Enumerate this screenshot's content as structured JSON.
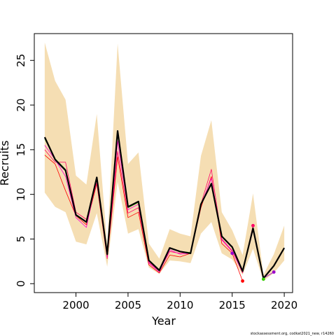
{
  "chart_data": {
    "type": "line",
    "title": "",
    "xlabel": "Year",
    "ylabel": "Recruits",
    "xlim": [
      1996.0,
      2020.8
    ],
    "ylim": [
      -1.0,
      28.0
    ],
    "xticks": [
      2000,
      2005,
      2010,
      2015,
      2020
    ],
    "yticks": [
      0,
      5,
      10,
      15,
      20,
      25
    ],
    "grid": false,
    "legend": "none",
    "footnote": "stockassessment.org, codkat2021_new, r14260",
    "colors": {
      "band": "#f5deb3",
      "main": "#000000",
      "retro_red": "#ff0000",
      "retro_magenta": "#ff00cc",
      "retro_green": "#33cc00",
      "retro_purple": "#9900cc"
    },
    "confidence_band": {
      "x": [
        1997,
        1998,
        1999,
        2000,
        2001,
        2002,
        2003,
        2004,
        2005,
        2006,
        2007,
        2008,
        2009,
        2010,
        2011,
        2012,
        2013,
        2014,
        2015,
        2016,
        2017,
        2018,
        2019,
        2020
      ],
      "upper": [
        27.0,
        22.7,
        20.6,
        12.1,
        11.1,
        19.0,
        4.3,
        26.9,
        13.4,
        14.7,
        4.5,
        2.8,
        6.1,
        5.6,
        5.3,
        14.3,
        18.3,
        8.0,
        6.0,
        3.2,
        10.1,
        1.0,
        3.3,
        6.5
      ],
      "lower": [
        10.2,
        8.6,
        8.0,
        4.7,
        4.4,
        7.9,
        1.9,
        11.4,
        5.6,
        6.1,
        1.8,
        1.1,
        2.6,
        2.5,
        2.3,
        5.6,
        6.9,
        3.4,
        2.7,
        1.0,
        3.9,
        0.3,
        1.2,
        2.6
      ]
    },
    "series": [
      {
        "color": "#ff0000",
        "x": [
          1997,
          1998,
          1999,
          2000,
          2001,
          2002,
          2003,
          2004,
          2005,
          2006,
          2007,
          2008,
          2009,
          2010,
          2011,
          2012,
          2013,
          2014,
          2015,
          2016
        ],
        "values": [
          14.4,
          13.4,
          10.4,
          7.6,
          6.6,
          11.2,
          2.8,
          14.2,
          7.4,
          8.0,
          2.1,
          1.2,
          3.2,
          3.0,
          3.4,
          8.5,
          12.0,
          4.5,
          3.4,
          0.3
        ]
      },
      {
        "color": "#ff0066",
        "x": [
          1997,
          1998,
          1999,
          2000,
          2001,
          2002,
          2003,
          2004,
          2005,
          2006,
          2007,
          2008,
          2009,
          2010,
          2011,
          2012,
          2013,
          2014,
          2015,
          2016,
          2017
        ],
        "values": [
          15.0,
          13.6,
          13.6,
          8.0,
          7.2,
          11.3,
          3.0,
          14.8,
          7.9,
          8.5,
          2.4,
          1.4,
          3.6,
          3.4,
          3.5,
          8.9,
          12.8,
          5.0,
          3.7,
          1.2,
          6.5
        ]
      },
      {
        "color": "#ff00cc",
        "x": [
          1997,
          1998,
          1999,
          2000,
          2001,
          2002,
          2003,
          2004,
          2005,
          2006,
          2007,
          2008,
          2009,
          2010,
          2011,
          2012,
          2013,
          2014,
          2015,
          2016,
          2017,
          2018
        ],
        "values": [
          15.5,
          13.9,
          12.0,
          7.4,
          6.3,
          11.8,
          2.9,
          16.0,
          8.3,
          8.9,
          2.3,
          1.3,
          3.8,
          3.3,
          3.4,
          8.8,
          11.8,
          4.9,
          3.6,
          1.3,
          6.0,
          0.5
        ]
      },
      {
        "color": "#33cc00",
        "x": [
          1997,
          1998,
          1999,
          2000,
          2001,
          2002,
          2003,
          2004,
          2005,
          2006,
          2007,
          2008,
          2009,
          2010,
          2011,
          2012,
          2013,
          2014,
          2015,
          2016,
          2017,
          2018
        ],
        "values": [
          16.2,
          14.0,
          12.8,
          7.6,
          6.9,
          11.8,
          3.2,
          16.8,
          8.5,
          9.1,
          2.6,
          1.4,
          4.0,
          3.6,
          3.5,
          9.0,
          11.2,
          5.3,
          4.1,
          1.4,
          6.2,
          0.5
        ]
      },
      {
        "color": "#9900cc",
        "x": [
          1997,
          1998,
          1999,
          2000,
          2001,
          2002,
          2003,
          2004,
          2005,
          2006,
          2007,
          2008,
          2009,
          2010,
          2011,
          2012,
          2013,
          2014,
          2015,
          2016,
          2017,
          2018,
          2019
        ],
        "values": [
          16.3,
          13.8,
          12.6,
          7.7,
          6.9,
          11.9,
          3.3,
          16.9,
          8.6,
          9.2,
          2.6,
          1.5,
          4.0,
          3.6,
          3.4,
          8.9,
          11.2,
          5.3,
          4.1,
          1.4,
          6.2,
          0.6,
          1.3
        ]
      },
      {
        "color": "#000000",
        "x": [
          1997,
          1998,
          1999,
          2000,
          2001,
          2002,
          2003,
          2004,
          2005,
          2006,
          2007,
          2008,
          2009,
          2010,
          2011,
          2012,
          2013,
          2014,
          2015,
          2016,
          2017,
          2018,
          2019,
          2020
        ],
        "values": [
          16.4,
          13.9,
          12.7,
          7.7,
          6.9,
          11.9,
          3.3,
          17.1,
          8.6,
          9.2,
          2.6,
          1.5,
          4.0,
          3.6,
          3.4,
          8.9,
          11.2,
          5.3,
          4.1,
          1.4,
          6.2,
          0.6,
          2.0,
          4.0
        ]
      }
    ],
    "end_points": [
      {
        "x": 2015,
        "y": 3.4,
        "color": "#9900cc"
      },
      {
        "x": 2016,
        "y": 0.3,
        "color": "#ff0000"
      },
      {
        "x": 2017,
        "y": 6.5,
        "color": "#ff0066"
      },
      {
        "x": 2018,
        "y": 0.5,
        "color": "#33cc00"
      },
      {
        "x": 2019,
        "y": 1.3,
        "color": "#9900cc"
      }
    ]
  }
}
